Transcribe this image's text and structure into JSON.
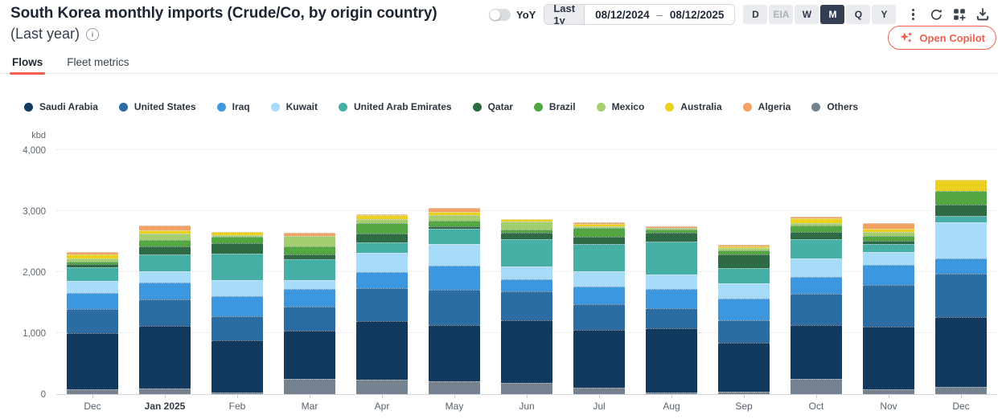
{
  "header": {
    "title": "South Korea monthly imports (Crude/Co, by origin country)",
    "subtitle": "(Last year)",
    "yoy_label": "YoY",
    "yoy_enabled": false,
    "range_preset": "Last 1y",
    "date_start": "08/12/2024",
    "date_separator": "–",
    "date_end": "08/12/2025",
    "granularity": {
      "options": [
        "D",
        "EIA",
        "W",
        "M",
        "Q",
        "Y"
      ],
      "selected": "M",
      "disabled": [
        "EIA"
      ]
    },
    "toolbar_icons": [
      "kebab-menu-icon",
      "refresh-icon",
      "add-to-dashboard-icon",
      "download-icon",
      "bookmark-icon"
    ],
    "copilot_button": "Open Copilot"
  },
  "tabs": [
    {
      "label": "Flows",
      "active": true
    },
    {
      "label": "Fleet metrics",
      "active": false
    }
  ],
  "colors": {
    "accent": "#ef5f4c",
    "selected_button_bg": "#343e52",
    "grid_line": "#dfe2e6",
    "axis_text": "#5d6673"
  },
  "chart_data": {
    "type": "bar",
    "stacked": true,
    "title": "South Korea monthly imports (Crude/Co, by origin country) (Last year)",
    "unit": "kbd",
    "ylabel": "kbd",
    "ylim": [
      0,
      4000
    ],
    "yticks": [
      "0",
      "1,000",
      "2,000",
      "3,000",
      "4,000"
    ],
    "grid": "horizontal-dotted",
    "legend_position": "top",
    "categories": [
      "Dec",
      "Jan 2025",
      "Feb",
      "Mar",
      "Apr",
      "May",
      "Jun",
      "Jul",
      "Aug",
      "Sep",
      "Oct",
      "Nov",
      "Dec"
    ],
    "emphasized_category": "Jan 2025",
    "series": [
      {
        "name": "Saudi Arabia",
        "color": "#123a5e",
        "values": [
          920,
          1035,
          855,
          800,
          960,
          920,
          1025,
          955,
          1065,
          800,
          885,
          1020,
          1145
        ]
      },
      {
        "name": "United States",
        "color": "#2b6ca3",
        "values": [
          395,
          430,
          395,
          390,
          540,
          580,
          475,
          425,
          325,
          365,
          510,
          685,
          710
        ]
      },
      {
        "name": "Iraq",
        "color": "#3d97de",
        "values": [
          260,
          275,
          325,
          290,
          265,
          400,
          205,
          285,
          315,
          350,
          270,
          330,
          250
        ]
      },
      {
        "name": "Kuwait",
        "color": "#a6dcfa",
        "values": [
          195,
          185,
          265,
          140,
          315,
          350,
          205,
          255,
          235,
          250,
          310,
          215,
          595
        ]
      },
      {
        "name": "United Arab Emirates",
        "color": "#45afa5",
        "values": [
          225,
          275,
          445,
          350,
          170,
          250,
          445,
          435,
          535,
          255,
          315,
          135,
          105
        ]
      },
      {
        "name": "Qatar",
        "color": "#2e6b45",
        "values": [
          50,
          130,
          160,
          80,
          140,
          35,
          110,
          120,
          155,
          230,
          120,
          45,
          185
        ]
      },
      {
        "name": "Brazil",
        "color": "#53a742",
        "values": [
          40,
          110,
          110,
          130,
          170,
          95,
          50,
          150,
          50,
          65,
          100,
          80,
          225
        ]
      },
      {
        "name": "Mexico",
        "color": "#a3cf70",
        "values": [
          50,
          100,
          30,
          170,
          65,
          95,
          135,
          20,
          25,
          30,
          40,
          75,
          0
        ]
      },
      {
        "name": "Australia",
        "color": "#ecd01f",
        "values": [
          65,
          50,
          45,
          0,
          65,
          50,
          45,
          45,
          0,
          30,
          85,
          50,
          185
        ]
      },
      {
        "name": "Algeria",
        "color": "#f2a264",
        "values": [
          40,
          90,
          0,
          50,
          25,
          75,
          0,
          25,
          25,
          30,
          20,
          85,
          0
        ]
      },
      {
        "name": "Others",
        "color": "#75828f",
        "values": [
          85,
          90,
          25,
          245,
          240,
          210,
          180,
          100,
          20,
          45,
          250,
          80,
          120
        ]
      }
    ],
    "stack_bottom_to_top": [
      "Others",
      "Saudi Arabia",
      "United States",
      "Iraq",
      "Kuwait",
      "United Arab Emirates",
      "Qatar",
      "Brazil",
      "Mexico",
      "Australia",
      "Algeria"
    ]
  }
}
